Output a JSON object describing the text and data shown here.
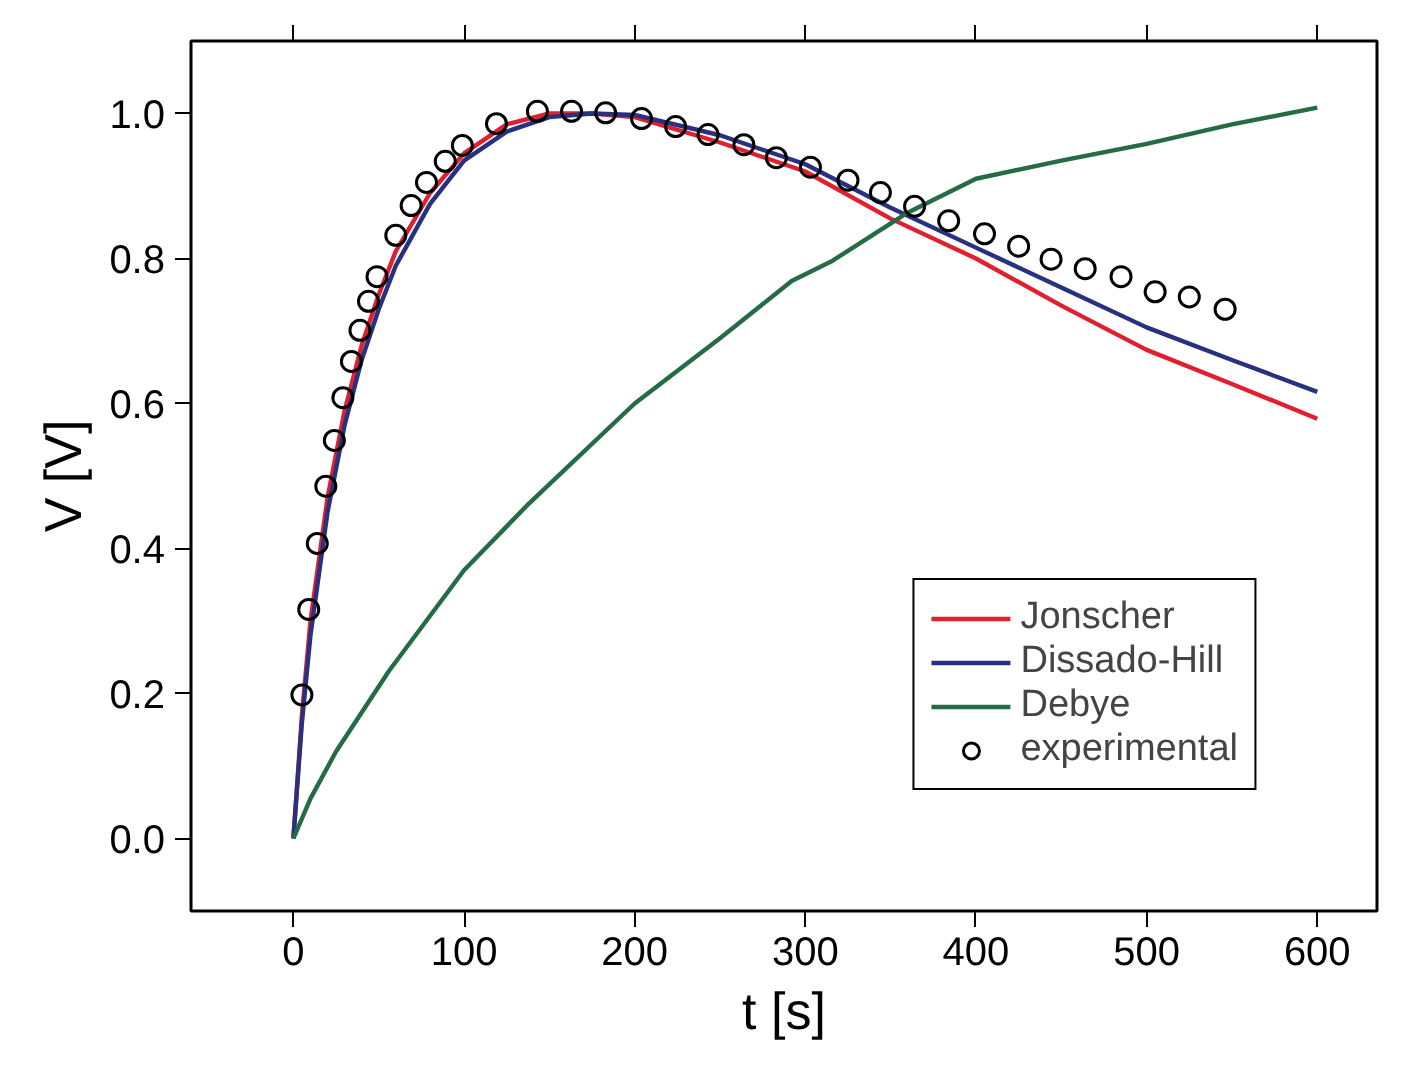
{
  "chart_data": {
    "type": "line",
    "xlabel": "t [s]",
    "ylabel": "V [V]",
    "xlim": [
      -60,
      635
    ],
    "ylim": [
      -0.1,
      1.1
    ],
    "xticks": [
      0,
      100,
      200,
      300,
      400,
      500,
      600
    ],
    "yticks": [
      {
        "value": 0,
        "label": "0.0"
      },
      {
        "value": 0.2,
        "label": "0.2"
      },
      {
        "value": 0.4,
        "label": "0.4"
      },
      {
        "value": 0.6,
        "label": "0.6"
      },
      {
        "value": 0.8,
        "label": "0.8"
      },
      {
        "value": 1.0,
        "label": "1.0"
      }
    ],
    "grid": false,
    "legend": "bottom right",
    "marker": "none",
    "line_style": "solid",
    "series": [
      {
        "name": "Jonscher",
        "color": "#e0202e",
        "x": [
          0,
          5,
          10,
          20,
          30,
          40,
          50,
          60,
          80,
          100,
          125,
          150,
          175,
          200,
          250,
          300,
          350,
          400,
          450,
          500,
          550,
          600
        ],
        "values": [
          0,
          0.17,
          0.3,
          0.47,
          0.59,
          0.68,
          0.75,
          0.81,
          0.89,
          0.945,
          0.985,
          1.0,
          1.0,
          0.995,
          0.96,
          0.92,
          0.855,
          0.8,
          0.735,
          0.674,
          0.627,
          0.579
        ]
      },
      {
        "name": "Dissado-Hill",
        "color": "#283080",
        "x": [
          0,
          5,
          10,
          20,
          30,
          40,
          50,
          60,
          80,
          100,
          125,
          150,
          175,
          200,
          250,
          300,
          350,
          400,
          450,
          500,
          550,
          600
        ],
        "values": [
          0,
          0.16,
          0.28,
          0.45,
          0.57,
          0.66,
          0.73,
          0.79,
          0.875,
          0.935,
          0.975,
          0.995,
          1.0,
          0.998,
          0.97,
          0.93,
          0.87,
          0.815,
          0.76,
          0.705,
          0.66,
          0.616
        ]
      },
      {
        "name": "Debye",
        "color": "#256b45",
        "x": [
          0,
          10,
          25,
          56,
          100,
          138,
          200,
          250,
          292,
          316,
          359,
          400,
          450,
          500,
          550,
          600
        ],
        "values": [
          0,
          0.055,
          0.12,
          0.231,
          0.37,
          0.462,
          0.6,
          0.69,
          0.769,
          0.797,
          0.862,
          0.91,
          0.935,
          0.958,
          0.985,
          1.008
        ]
      },
      {
        "name": "experimental",
        "type": "scatter",
        "marker": "circle",
        "color": "#000000",
        "x": [
          5,
          9,
          14,
          19,
          24,
          29,
          34,
          39,
          44,
          49,
          60,
          69,
          78,
          89,
          99,
          119,
          143,
          163,
          183,
          204,
          224,
          243,
          264,
          283,
          303,
          325,
          344,
          364,
          384,
          405,
          425,
          444,
          464,
          485,
          505,
          525,
          546
        ],
        "values": [
          0.198,
          0.316,
          0.407,
          0.486,
          0.549,
          0.608,
          0.658,
          0.701,
          0.741,
          0.775,
          0.832,
          0.873,
          0.905,
          0.934,
          0.956,
          0.986,
          1.003,
          1.003,
          1.001,
          0.993,
          0.982,
          0.971,
          0.957,
          0.939,
          0.926,
          0.908,
          0.891,
          0.872,
          0.852,
          0.834,
          0.817,
          0.799,
          0.786,
          0.775,
          0.754,
          0.747,
          0.73
        ]
      }
    ]
  }
}
